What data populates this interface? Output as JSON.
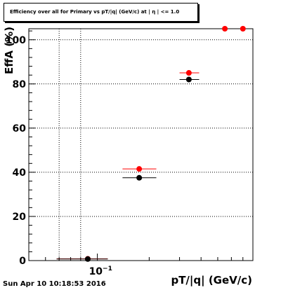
{
  "chart_data": {
    "type": "scatter",
    "title": "Efficiency over all for Primary vs pT/|q| (GeV/c) at | η | <= 1.0",
    "xlabel": "pT/|q| (GeV/c)",
    "ylabel": "EffA (%)",
    "x_scale": "log",
    "x_tick_labels": [
      {
        "base": "10",
        "exp": "−1"
      }
    ],
    "ylim": [
      0,
      105
    ],
    "y_ticks": [
      0,
      20,
      40,
      60,
      80,
      100
    ],
    "grid": true,
    "series": [
      {
        "color": "#ff0000",
        "points": [
          {
            "x": 0.088,
            "y": 0.8,
            "xlow": 0.058,
            "xhigh": 0.115
          },
          {
            "x": 0.175,
            "y": 41.5,
            "xlow": 0.14,
            "xhigh": 0.22
          },
          {
            "x": 0.34,
            "y": 85.0,
            "xlow": 0.3,
            "xhigh": 0.39
          },
          {
            "x": 0.55,
            "y": 105.0,
            "xlow": 0.55,
            "xhigh": 0.55
          },
          {
            "x": 0.7,
            "y": 105.0,
            "xlow": 0.7,
            "xhigh": 0.7
          }
        ]
      },
      {
        "color": "#000000",
        "points": [
          {
            "x": 0.088,
            "y": 0.7,
            "xlow": 0.058,
            "xhigh": 0.115
          },
          {
            "x": 0.175,
            "y": 37.5,
            "xlow": 0.14,
            "xhigh": 0.22
          },
          {
            "x": 0.34,
            "y": 82.0,
            "xlow": 0.3,
            "xhigh": 0.39
          }
        ]
      }
    ]
  },
  "timestamp": "Sun Apr 10 10:18:53 2016"
}
